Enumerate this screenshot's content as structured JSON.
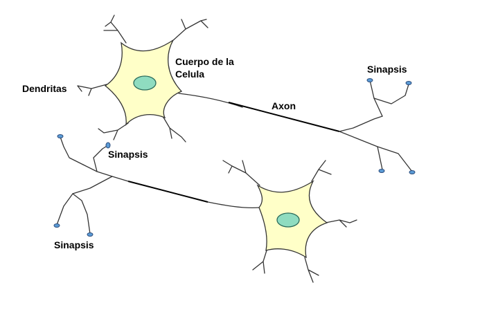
{
  "labels": {
    "cell_body": [
      "Cuerpo de la",
      "Celula"
    ],
    "dendrites": "Dendritas",
    "axon": "Axon",
    "synapse_top_right": "Sinapsis",
    "synapse_middle": "Sinapsis",
    "synapse_bottom_left": "Sinapsis"
  },
  "colors": {
    "cell_body_fill": "#ffffc8",
    "nucleus_fill": "#8fdcc0",
    "terminal_fill": "#5b9bd5",
    "line": "#333333"
  }
}
